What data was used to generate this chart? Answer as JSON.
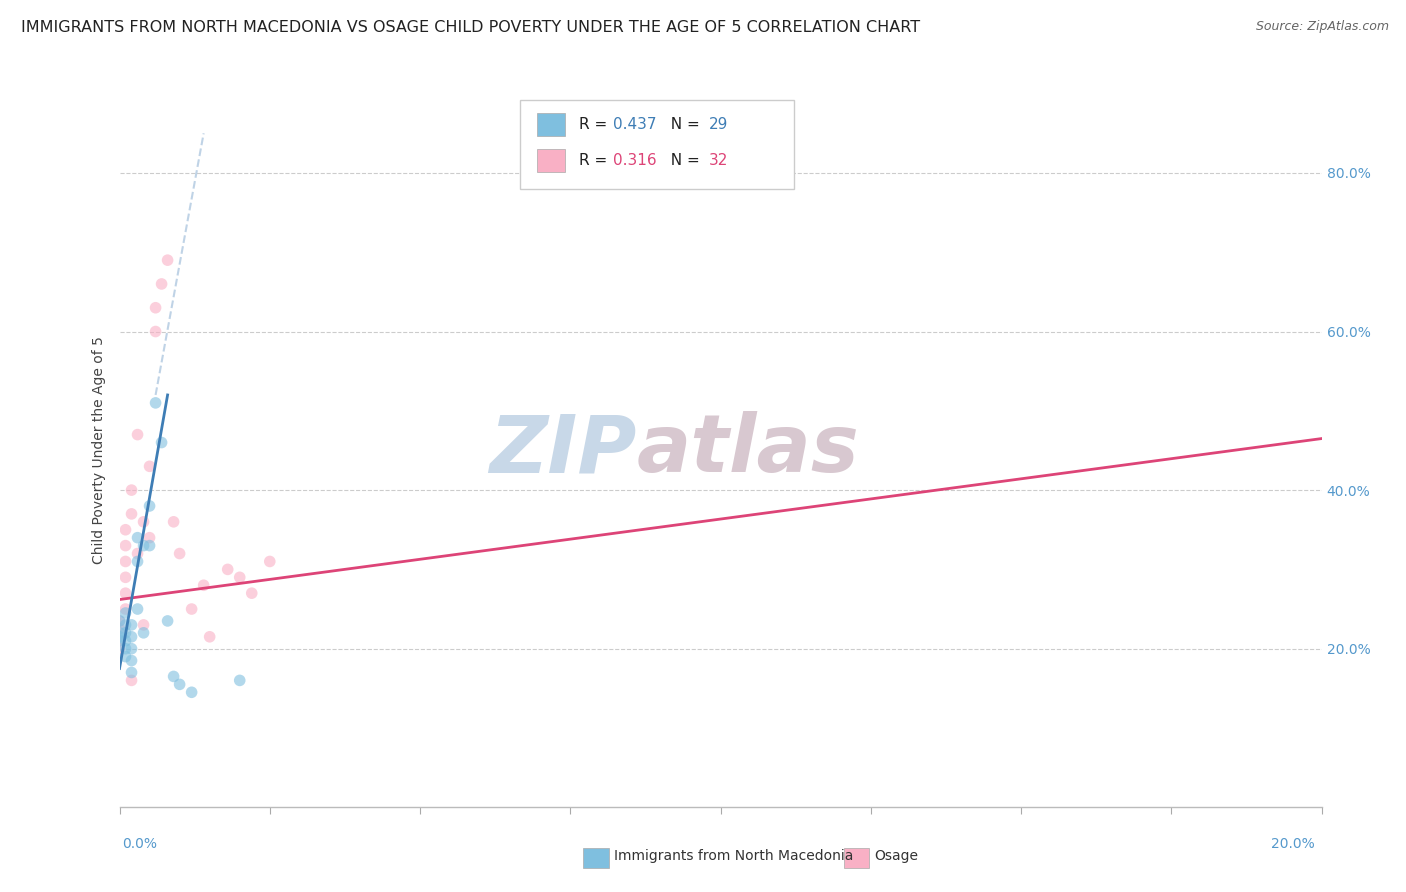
{
  "title": "IMMIGRANTS FROM NORTH MACEDONIA VS OSAGE CHILD POVERTY UNDER THE AGE OF 5 CORRELATION CHART",
  "source": "Source: ZipAtlas.com",
  "ylabel": "Child Poverty Under the Age of 5",
  "xlim": [
    0.0,
    0.2
  ],
  "ylim": [
    0.0,
    0.9
  ],
  "watermark_zip": "ZIP",
  "watermark_atlas": "atlas",
  "yticks": [
    0.2,
    0.4,
    0.6,
    0.8
  ],
  "ytick_labels": [
    "20.0%",
    "40.0%",
    "60.0%",
    "80.0%"
  ],
  "blue_r": "0.437",
  "blue_n": "29",
  "pink_r": "0.316",
  "pink_n": "32",
  "blue_scatter": [
    [
      0.0,
      0.235
    ],
    [
      0.0,
      0.22
    ],
    [
      0.0,
      0.215
    ],
    [
      0.0,
      0.21
    ],
    [
      0.001,
      0.245
    ],
    [
      0.001,
      0.23
    ],
    [
      0.001,
      0.22
    ],
    [
      0.001,
      0.21
    ],
    [
      0.001,
      0.2
    ],
    [
      0.001,
      0.19
    ],
    [
      0.002,
      0.23
    ],
    [
      0.002,
      0.215
    ],
    [
      0.002,
      0.2
    ],
    [
      0.002,
      0.185
    ],
    [
      0.002,
      0.17
    ],
    [
      0.003,
      0.34
    ],
    [
      0.003,
      0.31
    ],
    [
      0.003,
      0.25
    ],
    [
      0.004,
      0.33
    ],
    [
      0.004,
      0.22
    ],
    [
      0.005,
      0.38
    ],
    [
      0.005,
      0.33
    ],
    [
      0.006,
      0.51
    ],
    [
      0.007,
      0.46
    ],
    [
      0.008,
      0.235
    ],
    [
      0.009,
      0.165
    ],
    [
      0.01,
      0.155
    ],
    [
      0.012,
      0.145
    ],
    [
      0.02,
      0.16
    ]
  ],
  "pink_scatter": [
    [
      0.0,
      0.235
    ],
    [
      0.0,
      0.225
    ],
    [
      0.0,
      0.21
    ],
    [
      0.0,
      0.2
    ],
    [
      0.001,
      0.35
    ],
    [
      0.001,
      0.33
    ],
    [
      0.001,
      0.31
    ],
    [
      0.001,
      0.29
    ],
    [
      0.001,
      0.27
    ],
    [
      0.001,
      0.25
    ],
    [
      0.002,
      0.4
    ],
    [
      0.002,
      0.37
    ],
    [
      0.002,
      0.16
    ],
    [
      0.003,
      0.47
    ],
    [
      0.003,
      0.32
    ],
    [
      0.004,
      0.36
    ],
    [
      0.004,
      0.23
    ],
    [
      0.005,
      0.43
    ],
    [
      0.005,
      0.34
    ],
    [
      0.006,
      0.63
    ],
    [
      0.006,
      0.6
    ],
    [
      0.007,
      0.66
    ],
    [
      0.008,
      0.69
    ],
    [
      0.009,
      0.36
    ],
    [
      0.01,
      0.32
    ],
    [
      0.012,
      0.25
    ],
    [
      0.014,
      0.28
    ],
    [
      0.015,
      0.215
    ],
    [
      0.018,
      0.3
    ],
    [
      0.02,
      0.29
    ],
    [
      0.022,
      0.27
    ],
    [
      0.025,
      0.31
    ]
  ],
  "blue_line_x": [
    0.0,
    0.008
  ],
  "blue_line_y": [
    0.175,
    0.52
  ],
  "pink_line_x": [
    0.0,
    0.2
  ],
  "pink_line_y": [
    0.262,
    0.465
  ],
  "dashed_line_x": [
    0.006,
    0.014
  ],
  "dashed_line_y": [
    0.52,
    0.85
  ],
  "blue_scatter_color": "#7fbfdf",
  "pink_scatter_color": "#f9b0c5",
  "blue_line_color": "#3e7db5",
  "pink_line_color": "#dd4477",
  "dashed_line_color": "#b0c8e0",
  "scatter_alpha": 0.6,
  "marker_size": 70,
  "background_color": "#ffffff",
  "grid_color": "#cccccc",
  "title_fontsize": 11.5,
  "watermark_color_zip": "#c8d8e8",
  "watermark_color_atlas": "#d8c8d0",
  "watermark_fontsize": 58,
  "right_tick_color": "#5599cc"
}
